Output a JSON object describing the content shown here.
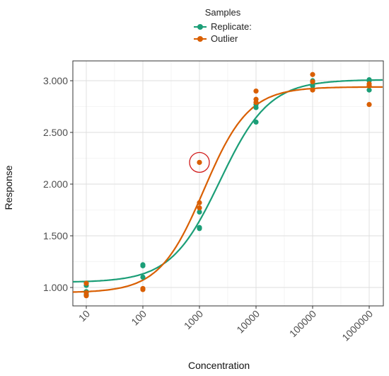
{
  "legend": {
    "title": "Samples",
    "items": [
      {
        "label": "Replicate:",
        "color": "#1b9e77"
      },
      {
        "label": "Outlier",
        "color": "#d95f02"
      }
    ]
  },
  "chart_data": {
    "type": "scatter",
    "xlabel": "Concentration",
    "ylabel": "Response",
    "x_scale": "log10",
    "x_ticks": [
      10,
      100,
      1000,
      10000,
      100000,
      1000000
    ],
    "x_tick_labels": [
      "10",
      "100",
      "1000",
      "10000",
      "100000",
      "1000000"
    ],
    "y_ticks": [
      1.0,
      1.5,
      2.0,
      2.5,
      3.0
    ],
    "y_tick_labels": [
      "1.000",
      "1.500",
      "2.000",
      "2.500",
      "3.000"
    ],
    "ylim": [
      0.82,
      3.12
    ],
    "grid": true,
    "legend_position": "top",
    "series": [
      {
        "name": "Replicate:",
        "color": "#1b9e77",
        "points": [
          {
            "x": 10,
            "y": 1.02
          },
          {
            "x": 10,
            "y": 0.96
          },
          {
            "x": 10,
            "y": 0.93
          },
          {
            "x": 100,
            "y": 1.21
          },
          {
            "x": 100,
            "y": 1.22
          },
          {
            "x": 100,
            "y": 1.1
          },
          {
            "x": 1000,
            "y": 1.73
          },
          {
            "x": 1000,
            "y": 1.58
          },
          {
            "x": 1000,
            "y": 1.57
          },
          {
            "x": 10000,
            "y": 2.74
          },
          {
            "x": 10000,
            "y": 2.6
          },
          {
            "x": 10000,
            "y": 2.77
          },
          {
            "x": 100000,
            "y": 2.95
          },
          {
            "x": 100000,
            "y": 2.99
          },
          {
            "x": 100000,
            "y": 3.0
          },
          {
            "x": 1000000,
            "y": 3.01
          },
          {
            "x": 1000000,
            "y": 2.91
          },
          {
            "x": 1000000,
            "y": 3.0
          }
        ],
        "fit": {
          "bottom": 1.05,
          "top": 3.01,
          "ec50": 2300,
          "hill": 1.0
        }
      },
      {
        "name": "Outlier",
        "color": "#d95f02",
        "points": [
          {
            "x": 10,
            "y": 1.04
          },
          {
            "x": 10,
            "y": 0.95
          },
          {
            "x": 10,
            "y": 0.92
          },
          {
            "x": 100,
            "y": 0.99
          },
          {
            "x": 100,
            "y": 0.98
          },
          {
            "x": 1000,
            "y": 2.21
          },
          {
            "x": 1000,
            "y": 1.82
          },
          {
            "x": 1000,
            "y": 1.77
          },
          {
            "x": 10000,
            "y": 2.9
          },
          {
            "x": 10000,
            "y": 2.82
          },
          {
            "x": 10000,
            "y": 2.79
          },
          {
            "x": 100000,
            "y": 3.06
          },
          {
            "x": 100000,
            "y": 2.99
          },
          {
            "x": 100000,
            "y": 2.91
          },
          {
            "x": 1000000,
            "y": 2.97
          },
          {
            "x": 1000000,
            "y": 2.95
          },
          {
            "x": 1000000,
            "y": 2.77
          }
        ],
        "fit": {
          "bottom": 0.95,
          "top": 2.94,
          "ec50": 1200,
          "hill": 1.1
        }
      }
    ],
    "highlight": {
      "x": 1000,
      "y": 2.21,
      "color": "#d11b1b"
    }
  }
}
